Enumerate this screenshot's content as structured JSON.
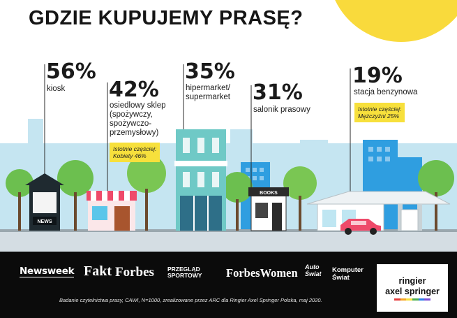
{
  "title": "GDZIE KUPUJEMY PRASĘ?",
  "colors": {
    "sun": "#f9da3c",
    "sky": "#e3f2f8",
    "ground": "#d4dde3",
    "note": "#f7e03c",
    "footer": "#0b0b0b"
  },
  "chart_data": {
    "type": "bar",
    "categories": [
      "kiosk",
      "osiedlowy sklep (spożywczy, spożywczo-przemysłowy)",
      "hipermarket/ supermarket",
      "salonik prasowy",
      "stacja benzynowa"
    ],
    "values": [
      56,
      42,
      35,
      31,
      19
    ],
    "value_labels": [
      "56%",
      "42%",
      "35%",
      "31%",
      "19%"
    ],
    "category_lines": [
      [
        "kiosk"
      ],
      [
        "osiedlowy sklep",
        "(spożywczy,",
        "spożywczo-",
        "przemysłowy)"
      ],
      [
        "hipermarket/",
        "supermarket"
      ],
      [
        "salonik prasowy"
      ],
      [
        "stacja benzynowa"
      ]
    ],
    "annotations": [
      {
        "category": "osiedlowy sklep (spożywczy, spożywczo-przemysłowy)",
        "lines": [
          "Istotnie częściej:",
          "Kobiety 46%"
        ]
      },
      {
        "category": "stacja benzynowa",
        "lines": [
          "Istotnie częściej:",
          "Mężczyźni 25%"
        ]
      }
    ],
    "illustration_labels": {
      "kiosk_sign": "NEWS",
      "bookstore_sign": "BOOKS"
    }
  },
  "footer": {
    "logos": [
      "Newsweek",
      "Fakt",
      "Forbes",
      "PRZEGLĄD SPORTOWY",
      "ForbesWomen",
      "Auto Świat",
      "Komputer Świat"
    ],
    "credit": "Badanie czytelnictwa prasy, CAWI, N=1000, zrealizowane przez ARC dla Ringier Axel Springer Polska, maj 2020.",
    "publisher": [
      "ringier",
      "axel springer"
    ],
    "publisher_stripe_colors": [
      "#e63c3c",
      "#f5a623",
      "#f7e03c",
      "#4caf50",
      "#2b7de9",
      "#7b4fd6"
    ]
  }
}
